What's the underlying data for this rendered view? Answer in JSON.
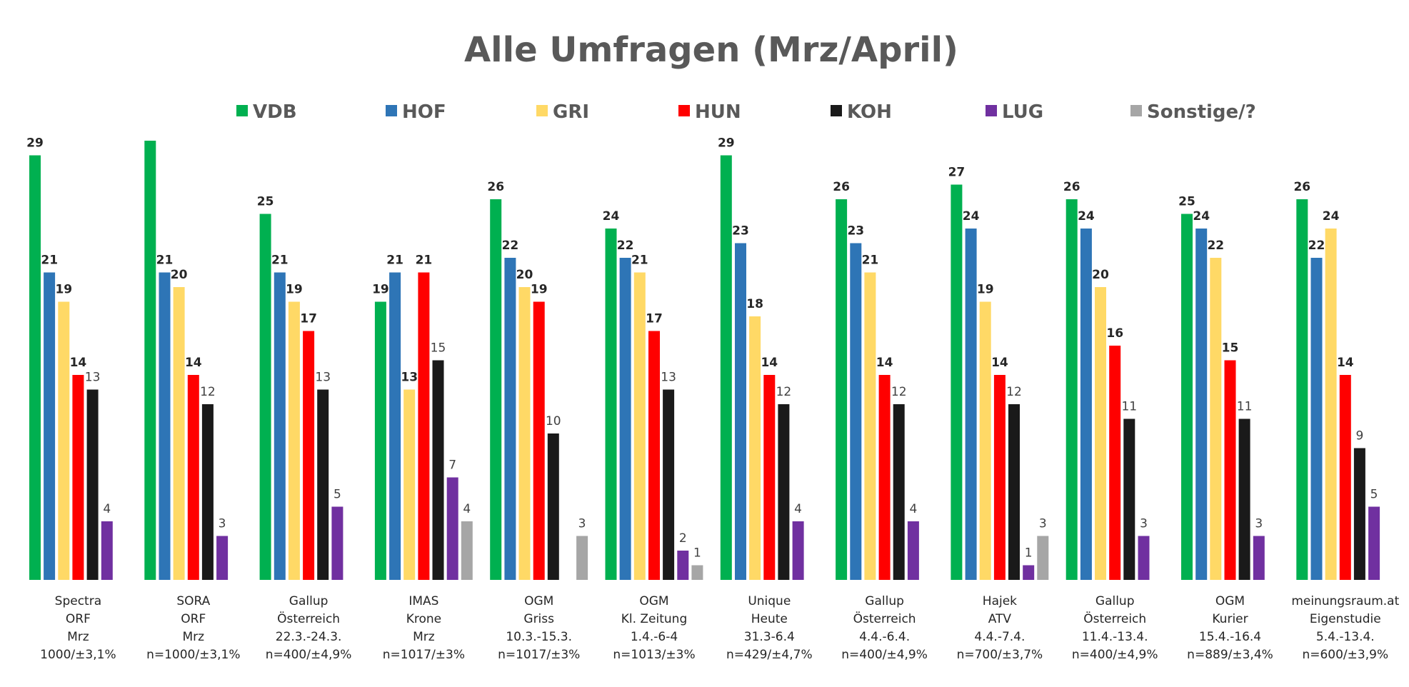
{
  "chart_data": {
    "type": "bar",
    "title": "Alle Umfragen (Mrz/April)",
    "ylim": [
      0,
      30
    ],
    "legend_position": "top",
    "series": [
      {
        "name": "VDB",
        "color": "#00b050",
        "bold_labels": true,
        "values": [
          29,
          30,
          25,
          19,
          26,
          24,
          29,
          26,
          27,
          26,
          25,
          26
        ],
        "labels": [
          "29",
          "",
          "25",
          "19",
          "26",
          "24",
          "29",
          "26",
          "27",
          "26",
          "25",
          "26"
        ]
      },
      {
        "name": "HOF",
        "color": "#2e75b6",
        "bold_labels": true,
        "values": [
          21,
          21,
          21,
          21,
          22,
          22,
          23,
          23,
          24,
          24,
          24,
          22
        ],
        "labels": [
          "21",
          "21",
          "21",
          "21",
          "22",
          "22",
          "23",
          "23",
          "24",
          "24",
          "24",
          "22"
        ]
      },
      {
        "name": "GRI",
        "color": "#ffd966",
        "bold_labels": true,
        "values": [
          19,
          20,
          19,
          13,
          20,
          21,
          18,
          21,
          19,
          20,
          22,
          24
        ],
        "labels": [
          "19",
          "20",
          "19",
          "13",
          "20",
          "21",
          "18",
          "21",
          "19",
          "20",
          "22",
          "24"
        ]
      },
      {
        "name": "HUN",
        "color": "#ff0000",
        "bold_labels": true,
        "values": [
          14,
          14,
          17,
          21,
          19,
          17,
          14,
          14,
          14,
          16,
          15,
          14
        ],
        "labels": [
          "14",
          "14",
          "17",
          "21",
          "19",
          "17",
          "14",
          "14",
          "14",
          "16",
          "15",
          "14"
        ]
      },
      {
        "name": "KOH",
        "color": "#1a1a1a",
        "bold_labels": false,
        "values": [
          13,
          12,
          13,
          15,
          10,
          13,
          12,
          12,
          12,
          11,
          11,
          9
        ],
        "labels": [
          "13",
          "12",
          "13",
          "15",
          "10",
          "13",
          "12",
          "12",
          "12",
          "11",
          "11",
          "9"
        ]
      },
      {
        "name": "LUG",
        "color": "#7030a0",
        "bold_labels": false,
        "values": [
          4,
          3,
          5,
          7,
          null,
          2,
          4,
          4,
          1,
          3,
          3,
          5
        ],
        "labels": [
          "4",
          "3",
          "5",
          "7",
          "",
          "2",
          "4",
          "4",
          "1",
          "3",
          "3",
          "5"
        ]
      },
      {
        "name": "Sonstige/?",
        "color": "#a6a6a6",
        "bold_labels": false,
        "values": [
          null,
          null,
          null,
          4,
          3,
          1,
          null,
          null,
          3,
          null,
          null,
          null
        ],
        "labels": [
          "",
          "",
          "",
          "4",
          "3",
          "1",
          "",
          "",
          "3",
          "",
          "",
          ""
        ]
      }
    ],
    "categories": [
      [
        "Spectra",
        "ORF",
        "Mrz",
        "1000/±3,1%"
      ],
      [
        "SORA",
        "ORF",
        "Mrz",
        "n=1000/±3,1%"
      ],
      [
        "Gallup",
        "Österreich",
        "22.3.-24.3.",
        "n=400/±4,9%"
      ],
      [
        "IMAS",
        "Krone",
        "Mrz",
        "n=1017/±3%"
      ],
      [
        "OGM",
        "Griss",
        "10.3.-15.3.",
        "n=1017/±3%"
      ],
      [
        "OGM",
        "Kl. Zeitung",
        "1.4.-6-4",
        "n=1013/±3%"
      ],
      [
        "Unique",
        "Heute",
        "31.3-6.4",
        "n=429/±4,7%"
      ],
      [
        "Gallup",
        "Österreich",
        "4.4.-6.4.",
        "n=400/±4,9%"
      ],
      [
        "Hajek",
        "ATV",
        "4.4.-7.4.",
        "n=700/±3,7%"
      ],
      [
        "Gallup",
        "Österreich",
        "11.4.-13.4.",
        "n=400/±4,9%"
      ],
      [
        "OGM",
        "Kurier",
        "15.4.-16.4",
        "n=889/±3,4%"
      ],
      [
        "meinungsraum.at",
        "Eigenstudie",
        "5.4.-13.4.",
        "n=600/±3,9%"
      ]
    ]
  }
}
